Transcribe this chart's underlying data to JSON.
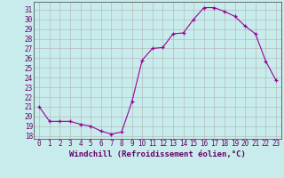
{
  "x": [
    0,
    1,
    2,
    3,
    4,
    5,
    6,
    7,
    8,
    9,
    10,
    11,
    12,
    13,
    14,
    15,
    16,
    17,
    18,
    19,
    20,
    21,
    22,
    23
  ],
  "y": [
    21,
    19.5,
    19.5,
    19.5,
    19.2,
    19.0,
    18.5,
    18.2,
    18.4,
    21.5,
    25.8,
    27.0,
    27.1,
    28.5,
    28.6,
    30.0,
    31.2,
    31.2,
    30.8,
    30.3,
    29.3,
    28.5,
    25.7,
    23.7
  ],
  "line_color": "#990099",
  "marker": "+",
  "marker_color": "#990099",
  "bg_color": "#c8ecec",
  "grid_color": "#b0b0b0",
  "xlabel": "Windchill (Refroidissement éolien,°C)",
  "ylabel_ticks": [
    18,
    19,
    20,
    21,
    22,
    23,
    24,
    25,
    26,
    27,
    28,
    29,
    30,
    31
  ],
  "ylim": [
    17.7,
    31.8
  ],
  "xlim": [
    -0.5,
    23.5
  ],
  "tick_fontsize": 5.5,
  "xlabel_fontsize": 6.5,
  "label_color": "#660066"
}
